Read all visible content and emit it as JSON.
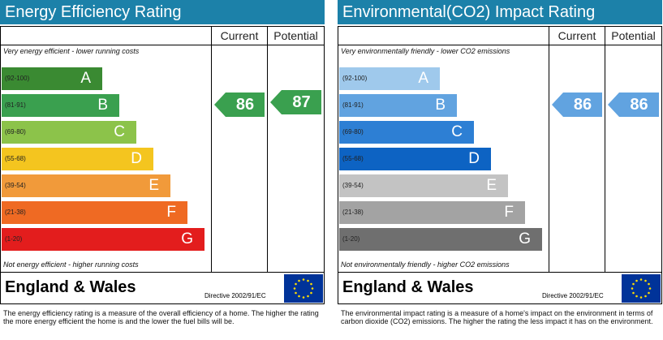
{
  "energy": {
    "title": "Energy Efficiency Rating",
    "col_current": "Current",
    "col_potential": "Potential",
    "top_note": "Very energy efficient - lower running costs",
    "bottom_note": "Not energy efficient - higher running costs",
    "bands": [
      {
        "range": "(92-100)",
        "letter": "A",
        "color": "#3a8a32"
      },
      {
        "range": "(81-91)",
        "letter": "B",
        "color": "#3aa04f"
      },
      {
        "range": "(69-80)",
        "letter": "C",
        "color": "#8cc34a"
      },
      {
        "range": "(55-68)",
        "letter": "D",
        "color": "#f4c51f"
      },
      {
        "range": "(39-54)",
        "letter": "E",
        "color": "#f19a3a"
      },
      {
        "range": "(21-38)",
        "letter": "F",
        "color": "#ef6a23"
      },
      {
        "range": "(1-20)",
        "letter": "G",
        "color": "#e31d1d"
      }
    ],
    "current": "86",
    "potential": "87",
    "arrow_color": "#3aa04f",
    "country": "England & Wales",
    "directive": "Directive 2002/91/EC",
    "description": "The energy efficiency rating is a measure of the overall efficiency of a home. The higher the rating the more energy efficient the home is and the lower the fuel bills will be."
  },
  "environment": {
    "title": "Environmental(CO2) Impact Rating",
    "col_current": "Current",
    "col_potential": "Potential",
    "top_note": "Very environmentally friendly - lower CO2 emissions",
    "bottom_note": "Not environmentally friendly - higher CO2 emissions",
    "bands": [
      {
        "range": "(92-100)",
        "letter": "A",
        "color": "#9fc9ec"
      },
      {
        "range": "(81-91)",
        "letter": "B",
        "color": "#61a3e0"
      },
      {
        "range": "(69-80)",
        "letter": "C",
        "color": "#2d7fd4"
      },
      {
        "range": "(55-68)",
        "letter": "D",
        "color": "#0d63c3"
      },
      {
        "range": "(39-54)",
        "letter": "E",
        "color": "#c3c3c3"
      },
      {
        "range": "(21-38)",
        "letter": "F",
        "color": "#a3a3a3"
      },
      {
        "range": "(1-20)",
        "letter": "G",
        "color": "#6f6f6f"
      }
    ],
    "current": "86",
    "potential": "86",
    "arrow_color": "#61a3e0",
    "country": "England & Wales",
    "directive": "Directive 2002/91/EC",
    "description": "The environmental impact rating is a measure of a home's impact on the environment in terms of carbon dioxide (CO2) emissions. The higher the rating the less impact it has on the environment."
  }
}
